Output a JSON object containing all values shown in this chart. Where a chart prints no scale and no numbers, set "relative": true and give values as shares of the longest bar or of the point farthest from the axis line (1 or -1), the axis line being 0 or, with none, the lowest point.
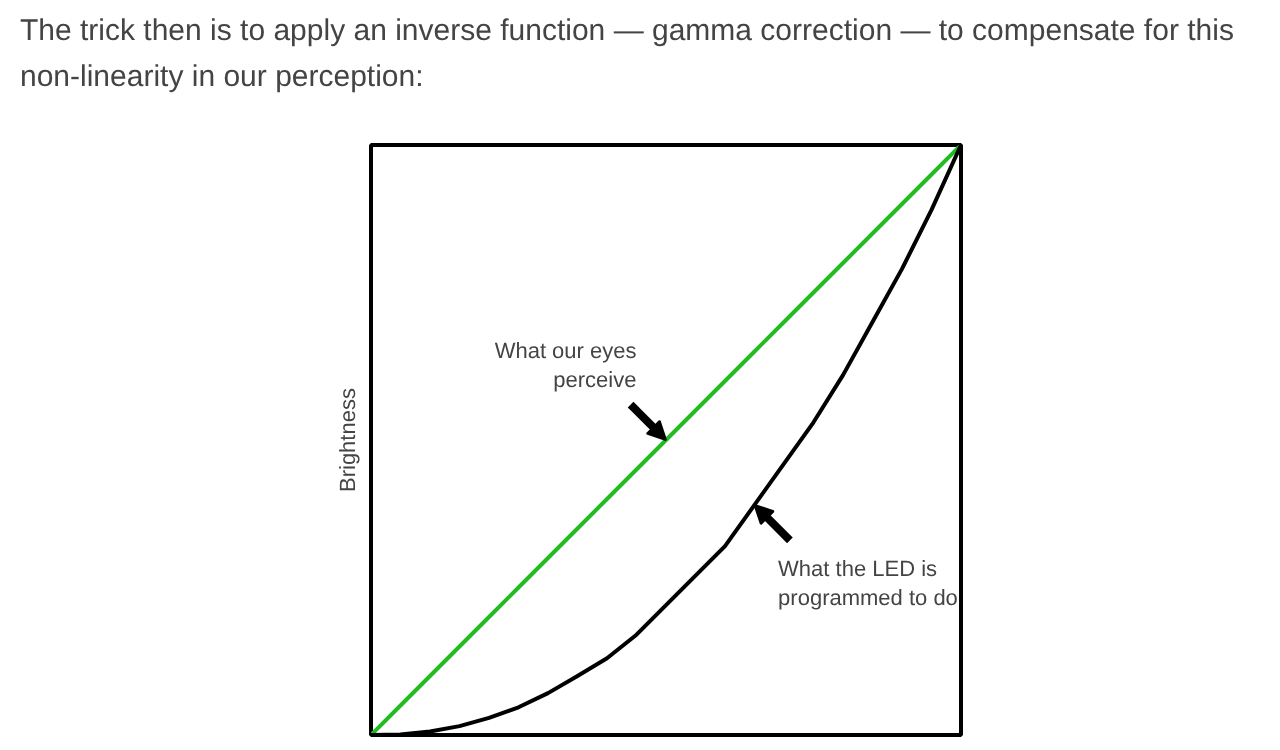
{
  "chart_data": {
    "type": "line",
    "title": "The trick then is to apply an inverse function — gamma correction — to compensate for this non-linearity in our perception:",
    "ylabel": "Brightness",
    "relative": true,
    "grid": false,
    "categories": [
      null,
      null,
      null,
      null,
      null,
      null,
      null,
      null,
      null,
      null,
      null,
      null,
      null,
      null,
      null,
      null,
      null,
      null,
      null,
      null,
      null
    ],
    "series": [
      {
        "color": "#22bb22",
        "values": [
          0,
          0.05,
          0.1,
          0.15,
          0.2,
          0.25,
          0.3,
          0.35,
          0.4,
          0.45,
          0.5,
          0.55,
          0.6,
          0.65,
          0.7,
          0.75,
          0.8,
          0.85,
          0.9,
          0.95,
          1
        ]
      },
      {
        "color": "#000000",
        "values": [
          0,
          0.001,
          0.006,
          0.015,
          0.029,
          0.047,
          0.071,
          0.1,
          0.13,
          0.17,
          0.22,
          0.27,
          0.32,
          0.39,
          0.46,
          0.53,
          0.61,
          0.7,
          0.79,
          0.89,
          1
        ]
      }
    ],
    "annotations": [
      "What our eyes perceive",
      "What the LED is programmed to do"
    ]
  }
}
